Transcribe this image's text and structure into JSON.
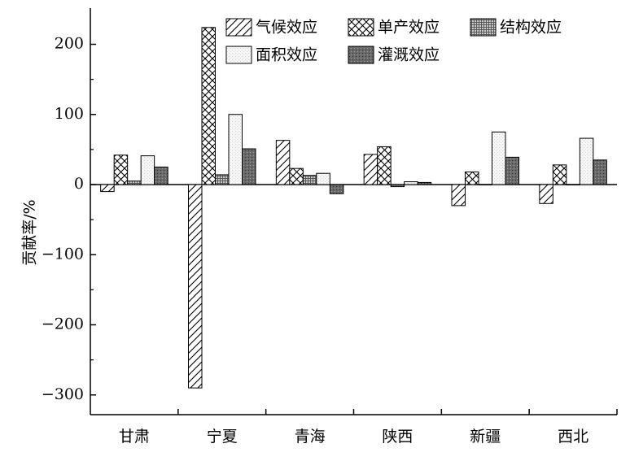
{
  "chart_data": {
    "type": "bar",
    "title": "",
    "xlabel": "",
    "ylabel": "贡献率/%",
    "ylim": [
      -320,
      250
    ],
    "yticks": [
      -300,
      -200,
      -100,
      0,
      100,
      200
    ],
    "ytick_labels": [
      "−300",
      "−200",
      "−100",
      "0",
      "100",
      "200"
    ],
    "categories": [
      "甘肃",
      "宁夏",
      "青海",
      "陕西",
      "新疆",
      "西北"
    ],
    "grid": false,
    "legend_position": "top-right",
    "series": [
      {
        "name": "气候效应",
        "pattern": "diagonal-hatch",
        "values": [
          -10,
          -290,
          63,
          43,
          -30,
          -27
        ]
      },
      {
        "name": "单产效应",
        "pattern": "cross-hatch",
        "values": [
          42,
          224,
          23,
          54,
          18,
          28
        ]
      },
      {
        "name": "结构效应",
        "pattern": "dense-grid",
        "values": [
          5,
          14,
          13,
          -3,
          0,
          0
        ]
      },
      {
        "name": "面积效应",
        "pattern": "light-dots",
        "values": [
          41,
          100,
          16,
          4,
          75,
          66
        ]
      },
      {
        "name": "灌溉效应",
        "pattern": "dark-dots",
        "values": [
          25,
          51,
          -13,
          3,
          39,
          35
        ]
      }
    ]
  }
}
